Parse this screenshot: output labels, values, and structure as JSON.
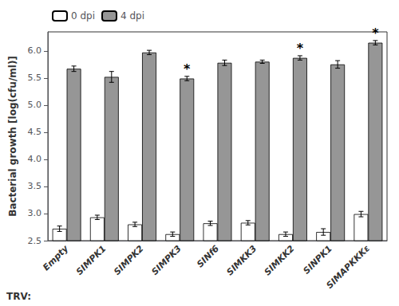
{
  "chart_data": {
    "type": "bar",
    "categories": [
      "Empty",
      "SIMPK1",
      "SIMPK2",
      "SIMPK3",
      "SINf6",
      "SIMKK3",
      "SIMKK2",
      "SINPK1",
      "SIMAPKKKε"
    ],
    "series": [
      {
        "name": "0 dpi",
        "color": "#ffffff",
        "values": [
          2.72,
          2.93,
          2.8,
          2.62,
          2.82,
          2.83,
          2.62,
          2.66,
          2.99
        ],
        "errors": [
          0.05,
          0.04,
          0.04,
          0.04,
          0.04,
          0.04,
          0.04,
          0.06,
          0.05
        ]
      },
      {
        "name": "4 dpi",
        "color": "#969696",
        "values": [
          5.67,
          5.52,
          5.97,
          5.49,
          5.78,
          5.8,
          5.87,
          5.75,
          6.15
        ],
        "errors": [
          0.05,
          0.1,
          0.04,
          0.04,
          0.05,
          0.03,
          0.04,
          0.07,
          0.04
        ]
      }
    ],
    "annotations": [
      {
        "text": "*",
        "category": "SIMPK3",
        "series": "4 dpi"
      },
      {
        "text": "*",
        "category": "SIMKK2",
        "series": "4 dpi"
      },
      {
        "text": "*",
        "category": "SIMAPKKKε",
        "series": "4 dpi"
      }
    ],
    "ylabel": "Bacterial growth [log(cfu/ml)]",
    "xlabel": "TRV:",
    "ylim": [
      2.5,
      6.35
    ],
    "yticks": [
      2.5,
      {
        "value": 3,
        "label": "3.0"
      },
      3.5,
      {
        "value": 4,
        "label": "4.0"
      },
      4.5,
      {
        "value": 5,
        "label": "5.0"
      },
      5.5,
      {
        "value": 6,
        "label": "6.0"
      }
    ],
    "grid": false,
    "legend": "upper left"
  }
}
